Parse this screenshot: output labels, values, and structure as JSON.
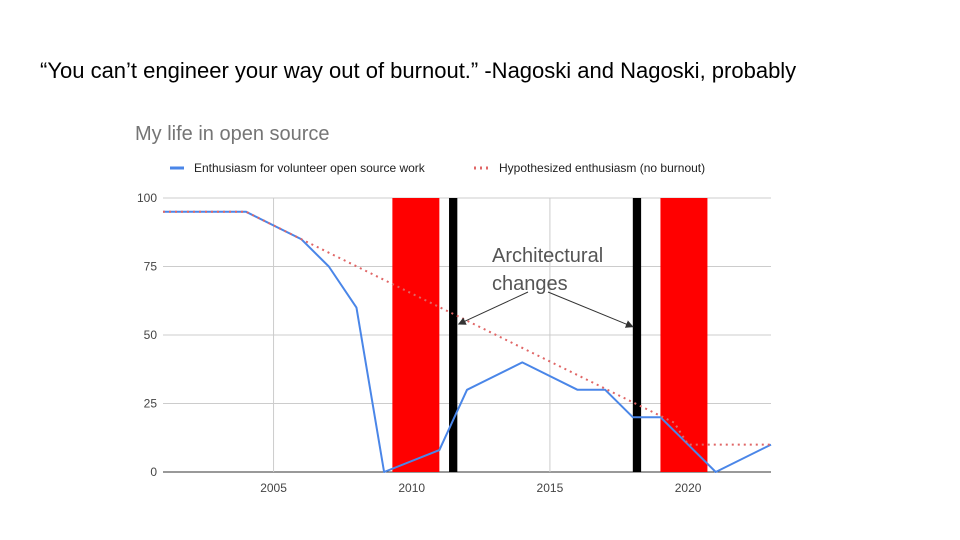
{
  "slide": {
    "title": "“You can’t engineer your way out of burnout.” -Nagoski and Nagoski, probably"
  },
  "chart_data": {
    "type": "line",
    "title": "My life in open source",
    "xlabel": "",
    "ylabel": "",
    "xlim": [
      2001,
      2023
    ],
    "ylim": [
      0,
      100
    ],
    "x_ticks": [
      2005,
      2010,
      2015,
      2020
    ],
    "y_ticks": [
      0,
      25,
      50,
      75,
      100
    ],
    "grid": true,
    "legend_position": "top",
    "series": [
      {
        "name": "Enthusiasm for volunteer open source work",
        "color": "#4A86E8",
        "style": "solid",
        "x": [
          2001,
          2004,
          2006,
          2007,
          2008,
          2009,
          2011,
          2012,
          2014,
          2016,
          2017,
          2018,
          2019,
          2020,
          2021,
          2023
        ],
        "y": [
          95,
          95,
          85,
          75,
          60,
          0,
          8,
          30,
          40,
          30,
          30,
          20,
          20,
          10,
          0,
          10
        ]
      },
      {
        "name": "Hypothesized enthusiasm (no burnout)",
        "color": "#E06666",
        "style": "dotted",
        "x": [
          2001,
          2004,
          2006,
          2019.5,
          2020,
          2023
        ],
        "y": [
          95,
          95,
          85,
          18,
          10,
          10
        ]
      }
    ],
    "bars": [
      {
        "color": "#FF0000",
        "x0": 2009.3,
        "x1": 2011.0
      },
      {
        "color": "#000000",
        "x0": 2011.35,
        "x1": 2011.65
      },
      {
        "color": "#000000",
        "x0": 2018.0,
        "x1": 2018.3
      },
      {
        "color": "#FF0000",
        "x0": 2019.0,
        "x1": 2020.7
      }
    ],
    "annotation": {
      "lines": [
        "Architectural",
        "changes"
      ],
      "arrow_targets": [
        {
          "x": 2011.7,
          "y": 54
        },
        {
          "x": 2018.0,
          "y": 53
        }
      ]
    }
  }
}
